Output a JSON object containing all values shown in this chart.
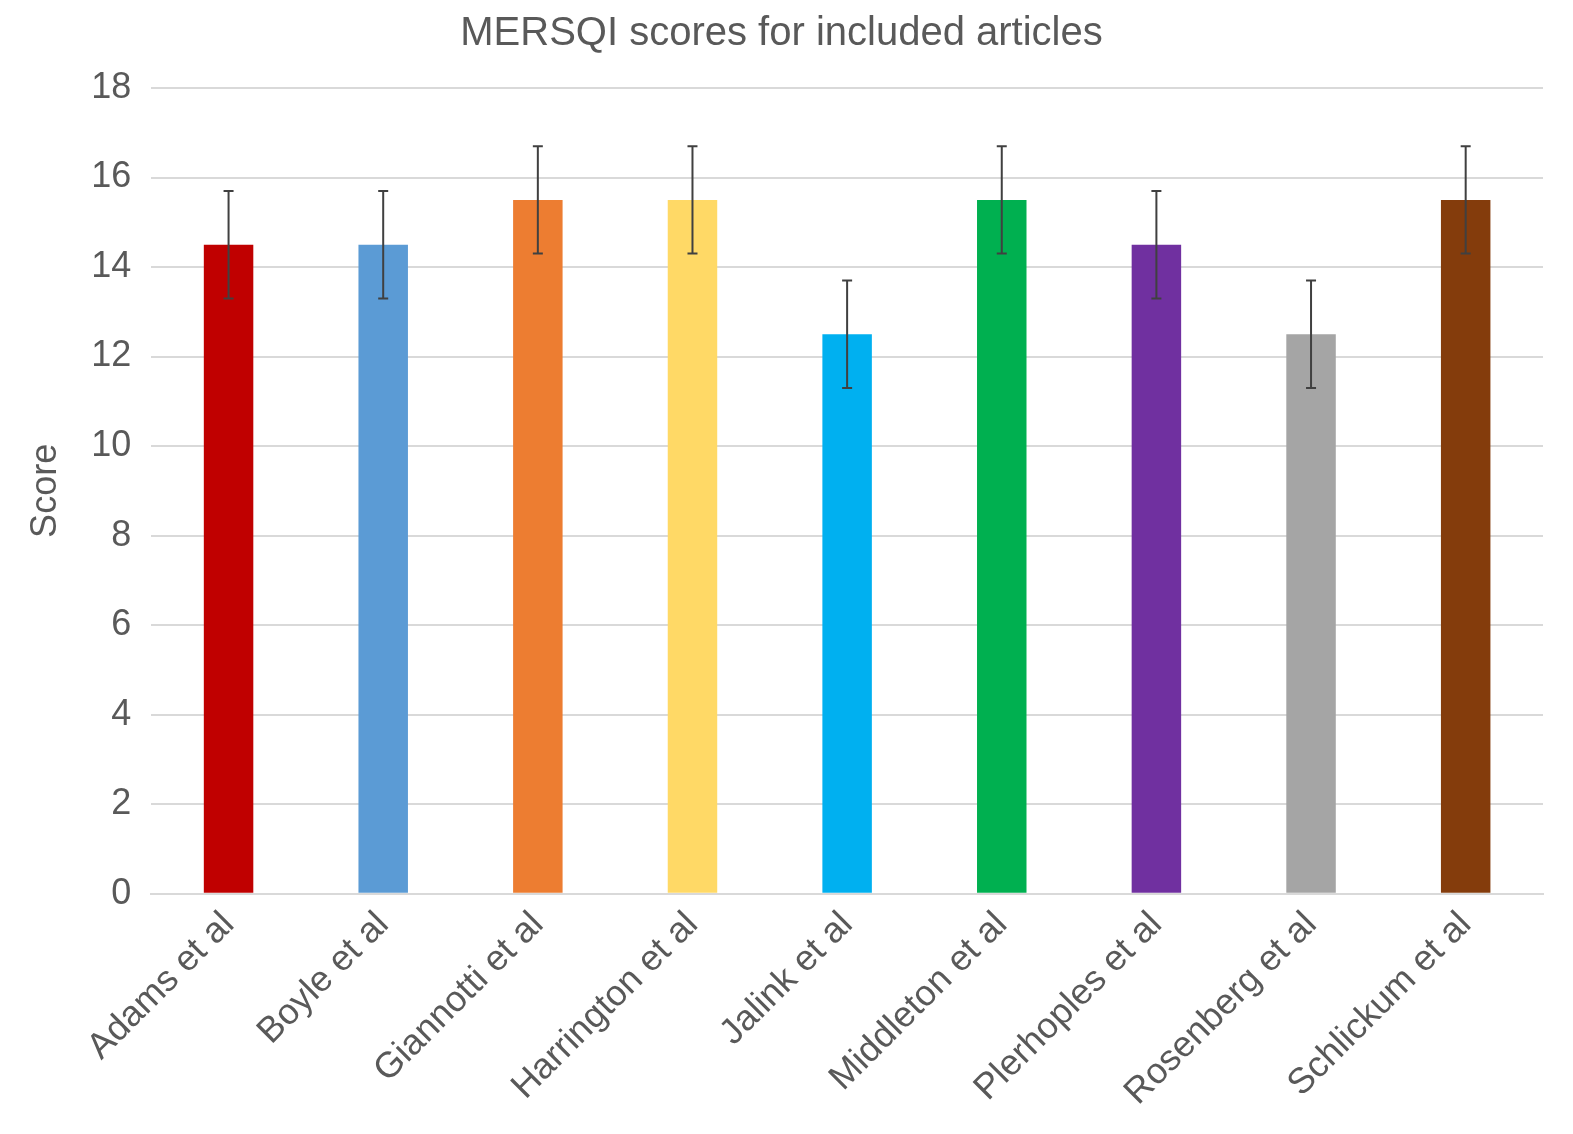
{
  "chart_data": {
    "type": "bar",
    "title": "MERSQI scores for included articles",
    "ylabel": "Score",
    "categories": [
      "Adams et al",
      "Boyle et al",
      "Giannotti et al",
      "Harrington et al",
      "Jalink et al",
      "Middleton et al",
      "Plerhoples et al",
      "Rosenberg et al",
      "Schlickum et al"
    ],
    "values": [
      14.5,
      14.5,
      15.5,
      15.5,
      12.5,
      15.5,
      14.5,
      12.5,
      15.5
    ],
    "errors": [
      1.2,
      1.2,
      1.2,
      1.2,
      1.2,
      1.2,
      1.2,
      1.2,
      1.2
    ],
    "colors": [
      "#c00000",
      "#5b9bd5",
      "#ed7d31",
      "#ffd966",
      "#00b0f0",
      "#00b050",
      "#7030a0",
      "#a5a5a5",
      "#843c0c"
    ],
    "ylim": [
      0,
      18
    ],
    "yticks": [
      0,
      2,
      4,
      6,
      8,
      10,
      12,
      14,
      16,
      18
    ],
    "grid": "y",
    "legend": false
  }
}
